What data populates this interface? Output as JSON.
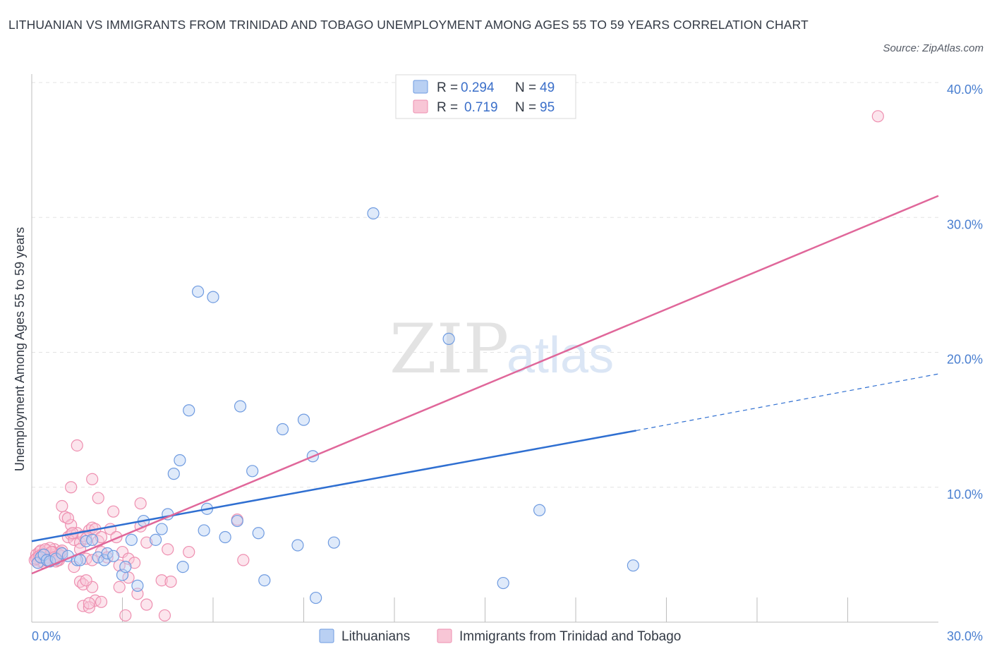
{
  "chart_data": {
    "type": "scatter",
    "title": "LITHUANIAN VS IMMIGRANTS FROM TRINIDAD AND TOBAGO UNEMPLOYMENT AMONG AGES 55 TO 59 YEARS CORRELATION CHART",
    "source": "Source: ZipAtlas.com",
    "xlabel": "",
    "ylabel": "Unemployment Among Ages 55 to 59 years",
    "xlim": [
      0,
      30
    ],
    "ylim": [
      0,
      40
    ],
    "x_tick_labels": {
      "min": "0.0%",
      "max": "30.0%"
    },
    "y_ticks": [
      {
        "value": 10,
        "label": "10.0%"
      },
      {
        "value": 20,
        "label": "20.0%"
      },
      {
        "value": 30,
        "label": "30.0%"
      },
      {
        "value": 40,
        "label": "40.0%"
      }
    ],
    "grid": true,
    "legend_position": "top-center",
    "colors": {
      "lithuanians": "#6f9be0",
      "trinidad": "#ee8fb0",
      "lithuanians_line": "#2f6fd1",
      "trinidad_line": "#e0679a"
    },
    "stats": [
      {
        "series": "Lithuanians",
        "r_label": "R = ",
        "r": "0.294",
        "n_label": "N = ",
        "n": "49"
      },
      {
        "series": "Immigrants from Trinidad and Tobago",
        "r_label": "R = ",
        "r": "0.719",
        "n_label": "N = ",
        "n": "95"
      }
    ],
    "trendlines": [
      {
        "series": "Lithuanians",
        "x0": 0,
        "y0": 6.0,
        "x1": 20,
        "y1": 14.2,
        "dashed_to_x": 30,
        "dashed_to_y": 18.4
      },
      {
        "series": "Immigrants from Trinidad and Tobago",
        "x0": 0,
        "y0": 3.6,
        "x1": 30,
        "y1": 31.6
      }
    ],
    "series": [
      {
        "name": "Lithuanians",
        "points": [
          [
            0.2,
            4.4
          ],
          [
            0.3,
            4.8
          ],
          [
            0.4,
            5.0
          ],
          [
            0.5,
            4.6
          ],
          [
            0.6,
            4.5
          ],
          [
            0.8,
            4.7
          ],
          [
            1.0,
            5.1
          ],
          [
            1.2,
            4.9
          ],
          [
            1.5,
            4.6
          ],
          [
            1.8,
            6.0
          ],
          [
            2.0,
            6.1
          ],
          [
            2.2,
            4.8
          ],
          [
            2.4,
            4.6
          ],
          [
            2.5,
            5.1
          ],
          [
            2.7,
            4.9
          ],
          [
            3.0,
            3.5
          ],
          [
            3.1,
            4.1
          ],
          [
            3.3,
            6.1
          ],
          [
            3.5,
            2.7
          ],
          [
            3.7,
            7.5
          ],
          [
            4.1,
            6.1
          ],
          [
            4.3,
            6.9
          ],
          [
            4.5,
            8.0
          ],
          [
            4.7,
            11.0
          ],
          [
            4.9,
            12.0
          ],
          [
            5.0,
            4.1
          ],
          [
            5.2,
            15.7
          ],
          [
            5.5,
            24.5
          ],
          [
            5.7,
            6.8
          ],
          [
            5.8,
            8.4
          ],
          [
            6.0,
            24.1
          ],
          [
            6.4,
            6.3
          ],
          [
            6.8,
            7.5
          ],
          [
            6.9,
            16.0
          ],
          [
            7.3,
            11.2
          ],
          [
            7.5,
            6.6
          ],
          [
            7.7,
            3.1
          ],
          [
            8.3,
            14.3
          ],
          [
            8.8,
            5.7
          ],
          [
            9.0,
            15.0
          ],
          [
            9.4,
            1.8
          ],
          [
            9.3,
            12.3
          ],
          [
            10.0,
            5.9
          ],
          [
            11.3,
            30.3
          ],
          [
            13.8,
            21.0
          ],
          [
            15.6,
            2.9
          ],
          [
            16.8,
            8.3
          ],
          [
            19.9,
            4.2
          ],
          [
            1.6,
            4.6
          ]
        ]
      },
      {
        "name": "Immigrants from Trinidad and Tobago",
        "points": [
          [
            0.1,
            4.6
          ],
          [
            0.15,
            5.0
          ],
          [
            0.2,
            4.8
          ],
          [
            0.25,
            5.2
          ],
          [
            0.3,
            4.5
          ],
          [
            0.35,
            4.9
          ],
          [
            0.4,
            5.1
          ],
          [
            0.45,
            4.7
          ],
          [
            0.5,
            5.3
          ],
          [
            0.55,
            4.6
          ],
          [
            0.6,
            4.9
          ],
          [
            0.65,
            5.0
          ],
          [
            0.7,
            4.7
          ],
          [
            0.75,
            5.4
          ],
          [
            0.8,
            4.8
          ],
          [
            0.85,
            5.1
          ],
          [
            0.9,
            4.6
          ],
          [
            0.95,
            5.2
          ],
          [
            1.0,
            4.9
          ],
          [
            0.2,
            4.4
          ],
          [
            0.3,
            5.3
          ],
          [
            0.4,
            4.4
          ],
          [
            0.5,
            4.8
          ],
          [
            0.6,
            5.5
          ],
          [
            0.7,
            5.2
          ],
          [
            0.8,
            4.5
          ],
          [
            0.9,
            5.0
          ],
          [
            1.0,
            5.3
          ],
          [
            0.15,
            4.7
          ],
          [
            0.25,
            4.9
          ],
          [
            0.35,
            5.0
          ],
          [
            0.45,
            5.4
          ],
          [
            0.55,
            4.5
          ],
          [
            0.65,
            5.2
          ],
          [
            0.75,
            4.8
          ],
          [
            0.85,
            4.6
          ],
          [
            1.2,
            6.3
          ],
          [
            1.3,
            6.5
          ],
          [
            1.4,
            6.1
          ],
          [
            1.5,
            6.6
          ],
          [
            1.6,
            5.9
          ],
          [
            1.7,
            6.4
          ],
          [
            1.8,
            6.2
          ],
          [
            1.9,
            6.8
          ],
          [
            2.0,
            7.0
          ],
          [
            2.1,
            6.9
          ],
          [
            2.2,
            6.0
          ],
          [
            2.3,
            6.3
          ],
          [
            1.1,
            7.8
          ],
          [
            1.0,
            8.6
          ],
          [
            1.3,
            7.2
          ],
          [
            1.2,
            7.7
          ],
          [
            1.35,
            6.6
          ],
          [
            1.4,
            4.1
          ],
          [
            1.6,
            5.4
          ],
          [
            1.8,
            4.7
          ],
          [
            2.0,
            4.6
          ],
          [
            2.3,
            5.2
          ],
          [
            2.5,
            4.8
          ],
          [
            2.6,
            6.9
          ],
          [
            2.8,
            6.3
          ],
          [
            2.9,
            4.2
          ],
          [
            3.0,
            5.2
          ],
          [
            3.2,
            4.7
          ],
          [
            3.4,
            4.4
          ],
          [
            3.6,
            7.1
          ],
          [
            3.8,
            5.9
          ],
          [
            4.3,
            3.1
          ],
          [
            4.5,
            5.4
          ],
          [
            5.2,
            5.2
          ],
          [
            1.6,
            3.0
          ],
          [
            1.7,
            2.8
          ],
          [
            2.0,
            2.6
          ],
          [
            1.5,
            13.1
          ],
          [
            1.3,
            10.0
          ],
          [
            2.0,
            10.6
          ],
          [
            2.2,
            9.2
          ],
          [
            2.7,
            8.2
          ],
          [
            3.6,
            8.8
          ],
          [
            4.6,
            3.0
          ],
          [
            2.1,
            1.6
          ],
          [
            2.3,
            1.5
          ],
          [
            1.7,
            1.2
          ],
          [
            1.9,
            1.1
          ],
          [
            3.1,
            0.5
          ],
          [
            3.8,
            1.3
          ],
          [
            4.4,
            0.5
          ],
          [
            3.5,
            2.1
          ],
          [
            3.2,
            3.3
          ],
          [
            2.9,
            2.6
          ],
          [
            1.8,
            3.1
          ],
          [
            6.8,
            7.6
          ],
          [
            7.0,
            4.6
          ],
          [
            28.0,
            37.5
          ],
          [
            1.9,
            1.4
          ]
        ]
      }
    ],
    "watermark": {
      "zip": "ZIP",
      "atlas": "atlas"
    }
  }
}
